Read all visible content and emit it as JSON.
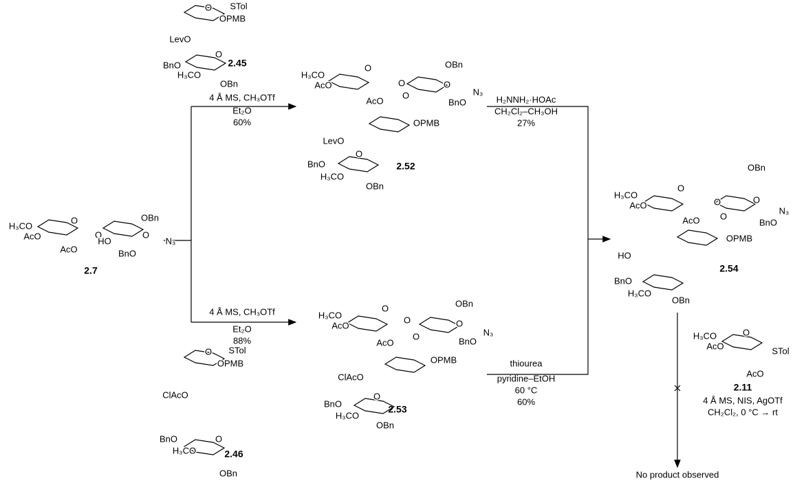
{
  "compounds": [
    {
      "id": "2.7",
      "atoms": [
        "H₃CO",
        "AcO",
        "O",
        "AcO",
        "O",
        "HO",
        "OBn",
        "O",
        "BnO",
        "N₃"
      ]
    },
    {
      "id": "2.45",
      "atoms": [
        "O",
        "STol",
        "OPMB",
        "LevO",
        "O",
        "BnO",
        "H₃CO",
        "OBn"
      ]
    },
    {
      "id": "2.52",
      "atoms": [
        "H₃CO",
        "AcO",
        "O",
        "AcO",
        "O",
        "OBn",
        "O",
        "BnO",
        "N₃",
        "O",
        "OPMB",
        "LevO",
        "O",
        "BnO",
        "H₃CO",
        "OBn"
      ]
    },
    {
      "id": "2.46",
      "atoms": [
        "O",
        "STol",
        "OPMB",
        "ClAcO",
        "O",
        "BnO",
        "H₃CO",
        "OBn"
      ]
    },
    {
      "id": "2.53",
      "atoms": [
        "H₃CO",
        "AcO",
        "O",
        "AcO",
        "O",
        "OBn",
        "O",
        "BnO",
        "N₃",
        "O",
        "OPMB",
        "ClAcO",
        "O",
        "BnO",
        "H₃CO",
        "OBn"
      ]
    },
    {
      "id": "2.54",
      "atoms": [
        "OBn",
        "H₃CO",
        "AcO",
        "O",
        "AcO",
        "O",
        "O",
        "N₃",
        "BnO",
        "O",
        "OPMB",
        "HO",
        "BnO",
        "H₃CO",
        "OBn"
      ]
    },
    {
      "id": "2.11",
      "atoms": [
        "H₃CO",
        "O",
        "AcO",
        "AcO",
        "STol"
      ]
    }
  ],
  "conditions": [
    [
      "4 Å MS, CH₃OTf",
      "Et₂O",
      "60%"
    ],
    [
      "4 Å MS, CH₃OTf",
      "Et₂O",
      "88%"
    ],
    [
      "H₂NNH₂·HOAc",
      "CH₂Cl₂–CH₃OH",
      "27%"
    ],
    [
      "thiourea",
      "pyridine–EtOH",
      "60 °C",
      "60%"
    ],
    [
      "4 Å MS, NIS, AgOTf",
      "CH₂Cl₂, 0 °C → rt"
    ]
  ],
  "result": "No product observed"
}
